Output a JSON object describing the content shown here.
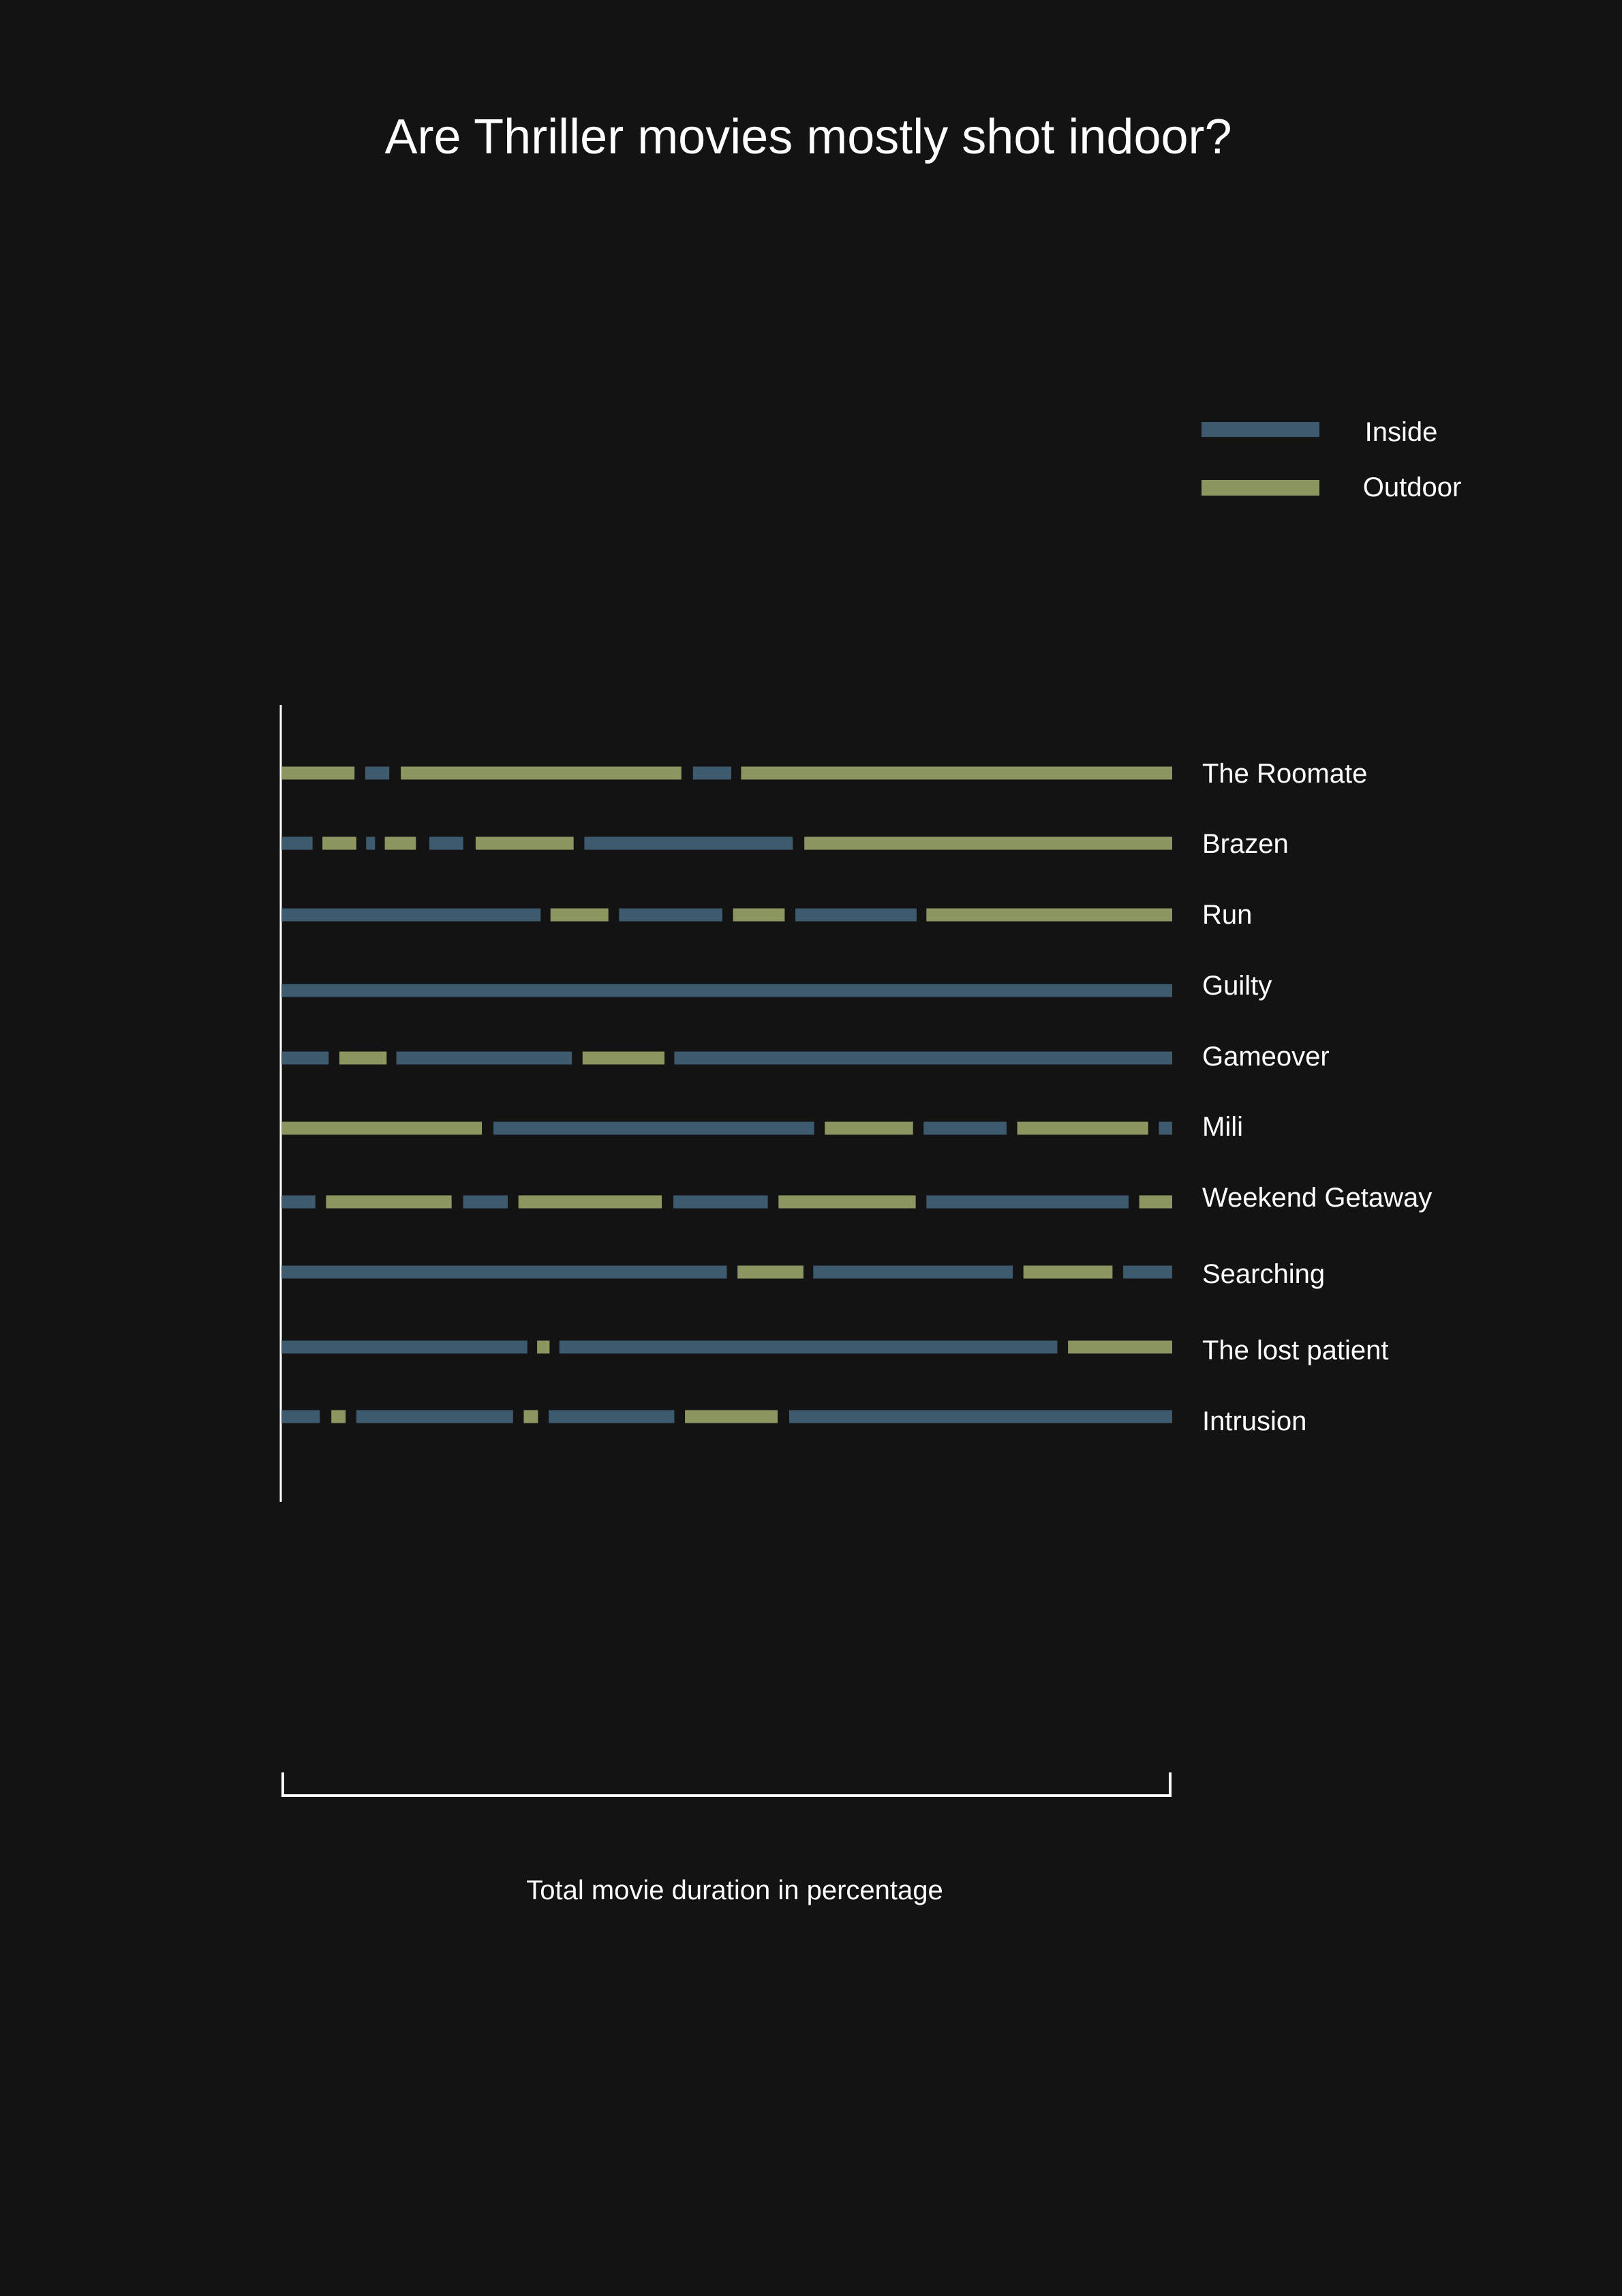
{
  "chart_data": {
    "type": "bar",
    "title": "Are Thriller movies mostly shot indoor?",
    "xlabel": "Total movie duration in percentage",
    "ylabel": "",
    "xlim": [
      0,
      100
    ],
    "legend": {
      "placement": "top-right",
      "entries": [
        {
          "name": "Inside",
          "color": "#3d5a6f"
        },
        {
          "name": "Outdoor",
          "color": "#8c9660"
        }
      ]
    },
    "colors": {
      "background": "#131313",
      "inside": "#3d5a6f",
      "outdoor": "#8c9660",
      "axis": "#ffffff"
    },
    "categories": [
      "The Roomate",
      "Brazen",
      "Run",
      "Guilty",
      "Gameover",
      "Mili",
      "Weekend Getaway",
      "Searching",
      "The lost patient",
      "Intrusion"
    ],
    "rows": [
      {
        "label": "The Roomate",
        "segments": [
          {
            "type": "Outdoor",
            "start": 0,
            "end": 8.2
          },
          {
            "type": "Inside",
            "start": 9.4,
            "end": 12.1
          },
          {
            "type": "Outdoor",
            "start": 13.4,
            "end": 44.9
          },
          {
            "type": "Inside",
            "start": 46.2,
            "end": 50.5
          },
          {
            "type": "Outdoor",
            "start": 51.6,
            "end": 100
          }
        ]
      },
      {
        "label": "Brazen",
        "segments": [
          {
            "type": "Inside",
            "start": 0,
            "end": 3.5
          },
          {
            "type": "Outdoor",
            "start": 4.6,
            "end": 8.4
          },
          {
            "type": "Inside",
            "start": 9.5,
            "end": 10.5
          },
          {
            "type": "Outdoor",
            "start": 11.6,
            "end": 15.1
          },
          {
            "type": "Inside",
            "start": 16.6,
            "end": 20.4
          },
          {
            "type": "Outdoor",
            "start": 21.8,
            "end": 32.8
          },
          {
            "type": "Inside",
            "start": 34.0,
            "end": 57.4
          },
          {
            "type": "Outdoor",
            "start": 58.7,
            "end": 100
          }
        ]
      },
      {
        "label": "Run",
        "segments": [
          {
            "type": "Inside",
            "start": 0,
            "end": 29.1
          },
          {
            "type": "Outdoor",
            "start": 30.2,
            "end": 36.7
          },
          {
            "type": "Inside",
            "start": 37.9,
            "end": 49.5
          },
          {
            "type": "Outdoor",
            "start": 50.7,
            "end": 56.5
          },
          {
            "type": "Inside",
            "start": 57.7,
            "end": 71.3
          },
          {
            "type": "Outdoor",
            "start": 72.4,
            "end": 100
          }
        ]
      },
      {
        "label": "Guilty",
        "segments": [
          {
            "type": "Inside",
            "start": 0,
            "end": 100
          }
        ]
      },
      {
        "label": "Gameover",
        "segments": [
          {
            "type": "Inside",
            "start": 0,
            "end": 5.3
          },
          {
            "type": "Outdoor",
            "start": 6.5,
            "end": 11.8
          },
          {
            "type": "Inside",
            "start": 12.9,
            "end": 32.6
          },
          {
            "type": "Outdoor",
            "start": 33.8,
            "end": 43.0
          },
          {
            "type": "Inside",
            "start": 44.1,
            "end": 100
          }
        ]
      },
      {
        "label": "Mili",
        "segments": [
          {
            "type": "Outdoor",
            "start": 0,
            "end": 22.5
          },
          {
            "type": "Inside",
            "start": 23.8,
            "end": 59.8
          },
          {
            "type": "Outdoor",
            "start": 61.0,
            "end": 70.9
          },
          {
            "type": "Inside",
            "start": 72.1,
            "end": 81.4
          },
          {
            "type": "Outdoor",
            "start": 82.6,
            "end": 97.3
          },
          {
            "type": "Inside",
            "start": 98.5,
            "end": 100
          }
        ]
      },
      {
        "label": "Weekend Getaway",
        "segments": [
          {
            "type": "Inside",
            "start": 0,
            "end": 3.8
          },
          {
            "type": "Outdoor",
            "start": 5.0,
            "end": 19.1
          },
          {
            "type": "Inside",
            "start": 20.4,
            "end": 25.4
          },
          {
            "type": "Outdoor",
            "start": 26.6,
            "end": 42.7
          },
          {
            "type": "Inside",
            "start": 44.0,
            "end": 54.6
          },
          {
            "type": "Outdoor",
            "start": 55.8,
            "end": 71.2
          },
          {
            "type": "Inside",
            "start": 72.4,
            "end": 95.1
          },
          {
            "type": "Outdoor",
            "start": 96.3,
            "end": 100
          }
        ]
      },
      {
        "label": "Searching",
        "segments": [
          {
            "type": "Inside",
            "start": 0,
            "end": 50.0
          },
          {
            "type": "Outdoor",
            "start": 51.2,
            "end": 58.6
          },
          {
            "type": "Inside",
            "start": 59.7,
            "end": 82.1
          },
          {
            "type": "Outdoor",
            "start": 83.3,
            "end": 93.3
          },
          {
            "type": "Inside",
            "start": 94.5,
            "end": 100
          }
        ]
      },
      {
        "label": "The lost patient",
        "segments": [
          {
            "type": "Inside",
            "start": 0,
            "end": 27.6
          },
          {
            "type": "Outdoor",
            "start": 28.7,
            "end": 30.1
          },
          {
            "type": "Inside",
            "start": 31.2,
            "end": 87.1
          },
          {
            "type": "Outdoor",
            "start": 88.3,
            "end": 100
          }
        ]
      },
      {
        "label": "Intrusion",
        "segments": [
          {
            "type": "Inside",
            "start": 0,
            "end": 4.3
          },
          {
            "type": "Outdoor",
            "start": 5.6,
            "end": 7.2
          },
          {
            "type": "Inside",
            "start": 8.4,
            "end": 26.0
          },
          {
            "type": "Outdoor",
            "start": 27.2,
            "end": 28.8
          },
          {
            "type": "Inside",
            "start": 30.0,
            "end": 44.1
          },
          {
            "type": "Outdoor",
            "start": 45.3,
            "end": 55.7
          },
          {
            "type": "Inside",
            "start": 57.0,
            "end": 100
          }
        ]
      }
    ]
  }
}
